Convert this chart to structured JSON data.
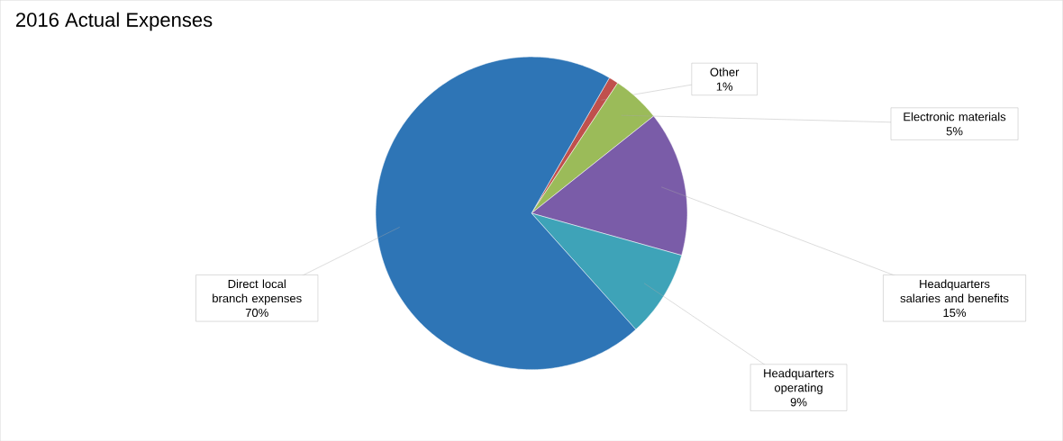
{
  "chart_data": {
    "type": "pie",
    "title": "2016 Actual Expenses",
    "categories": [
      "Other",
      "Electronic materials",
      "Headquarters salaries and benefits",
      "Headquarters operating",
      "Direct local branch expenses"
    ],
    "values": [
      1,
      5,
      15,
      9,
      70
    ],
    "value_labels": [
      "1%",
      "5%",
      "15%",
      "9%",
      "70%"
    ],
    "colors": [
      "#c0504d",
      "#9bbb59",
      "#7a5ca8",
      "#3ea3b8",
      "#2e75b6"
    ]
  }
}
